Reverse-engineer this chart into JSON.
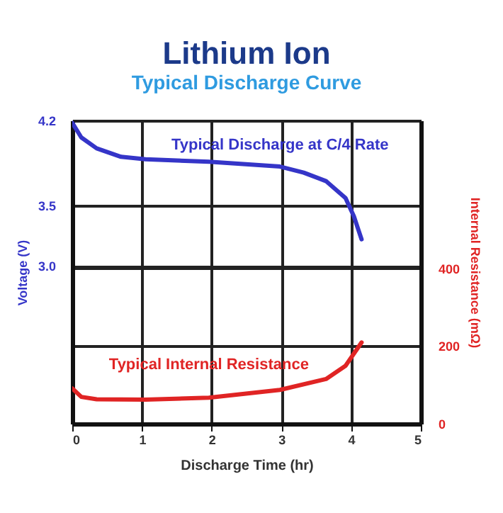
{
  "chart_data": {
    "type": "line",
    "title": "Lithium Ion",
    "subtitle": "Typical Discharge Curve",
    "xlabel": "Discharge Time (hr)",
    "ylabel": "Voltage (V)",
    "y2label": "Internal Resistance (mΩ)",
    "xlim": [
      0,
      5
    ],
    "xticks": [
      0,
      1,
      2,
      3,
      4,
      5
    ],
    "ylim": [
      1.7,
      4.2
    ],
    "yticks": [
      {
        "value": 3,
        "label": "3.0"
      },
      3.5,
      4.2
    ],
    "y2lim": [
      0,
      780
    ],
    "y2ticks": [
      0,
      200,
      400
    ],
    "grid": true,
    "marker": "none",
    "line_style": "solid",
    "series": [
      {
        "name": "Typical Discharge at C/4 Rate",
        "color": "#3535c8",
        "x": [
          0,
          0.13,
          0.35,
          0.7,
          1.05,
          1.96,
          2.98,
          3.32,
          3.64,
          3.92,
          4.04,
          4.15
        ],
        "values": [
          4.18,
          4.06,
          3.97,
          3.9,
          3.88,
          3.86,
          3.82,
          3.77,
          3.7,
          3.56,
          3.41,
          3.22
        ]
      },
      {
        "name": "Typical Internal Resistance",
        "color": "#e02424",
        "axis": "y2",
        "x": [
          0,
          0.13,
          0.35,
          1.05,
          1.96,
          2.98,
          3.64,
          3.92,
          4.15
        ],
        "values": [
          91,
          69,
          63,
          62,
          67,
          87,
          115,
          149,
          209
        ]
      }
    ]
  }
}
